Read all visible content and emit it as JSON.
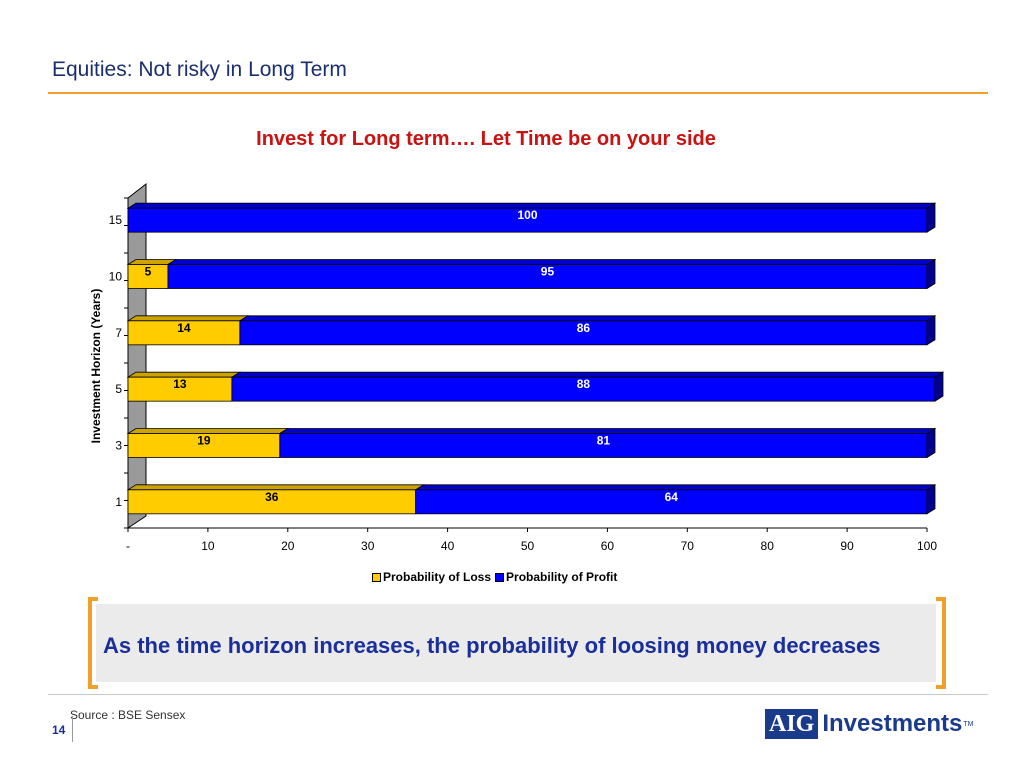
{
  "slide": {
    "title": "Equities: Not risky in Long Term",
    "callout": "As the time horizon increases, the probability of loosing money decreases",
    "source": "Source : BSE Sensex",
    "page_number": "14",
    "logo": {
      "box_text": "AIG",
      "text": "Investments",
      "tm": "TM"
    }
  },
  "colors": {
    "loss": "#ffcc00",
    "profit": "#0000ff",
    "title_red": "#cc1111",
    "accent": "#f0a02a",
    "navy": "#1a2f6e"
  },
  "chart_data": {
    "type": "bar",
    "orientation": "horizontal",
    "stacked": true,
    "title": "Invest for Long term…. Let Time be on your side",
    "ylabel": "Investment Horizon (Years)",
    "xlabel": "",
    "categories": [
      "1",
      "3",
      "5",
      "7",
      "10",
      "15"
    ],
    "series": [
      {
        "name": "Probability of Loss",
        "values": [
          36,
          19,
          13,
          14,
          5,
          0
        ],
        "labels": [
          "36",
          "19",
          "13",
          "14",
          "5",
          ""
        ]
      },
      {
        "name": "Probability of Profit",
        "values": [
          64,
          81,
          88,
          86,
          95,
          100
        ],
        "labels": [
          "64",
          "81",
          "88",
          "86",
          "95",
          "100"
        ]
      }
    ],
    "xlim": [
      0,
      100
    ],
    "xticks": [
      "-",
      "10",
      "20",
      "30",
      "40",
      "50",
      "60",
      "70",
      "80",
      "90",
      "100"
    ],
    "legend_position": "bottom",
    "grid": false,
    "style": "3d"
  }
}
